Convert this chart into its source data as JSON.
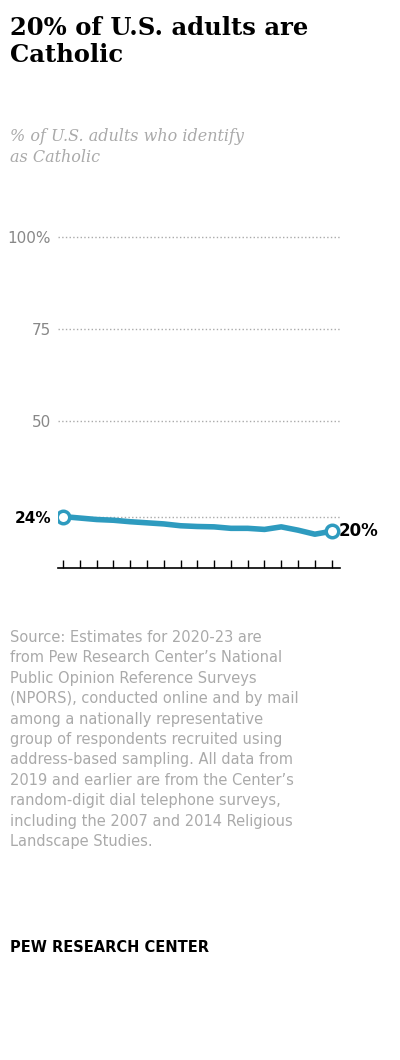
{
  "title": "20% of U.S. adults are\nCatholic",
  "subtitle": "% of U.S. adults who identify\nas Catholic",
  "years": [
    2007,
    2008,
    2009,
    2010,
    2011,
    2012,
    2013,
    2014,
    2015,
    2016,
    2017,
    2018,
    2019,
    2020,
    2021,
    2022,
    2023
  ],
  "values": [
    24,
    23.6,
    23.2,
    23.0,
    22.6,
    22.3,
    22.0,
    21.5,
    21.3,
    21.2,
    20.8,
    20.8,
    20.5,
    21.2,
    20.3,
    19.2,
    20.0
  ],
  "line_color": "#2e9bbf",
  "line_width": 4.0,
  "dot_color": "#2e9bbf",
  "first_label": "24%",
  "last_label": "20%",
  "yticks": [
    100,
    75,
    50,
    24
  ],
  "ytick_labels": [
    "100%",
    "75",
    "50",
    "24%"
  ],
  "xmin": 2007,
  "xmax": 2023,
  "ymin": 10,
  "ymax": 108,
  "dotted_line_color": "#aaaaaa",
  "background_color": "#ffffff",
  "source_text": "Source: Estimates for 2020-23 are\nfrom Pew Research Center’s National\nPublic Opinion Reference Surveys\n(NPORS), conducted online and by mail\namong a nationally representative\ngroup of respondents recruited using\naddress-based sampling. All data from\n2019 and earlier are from the Center’s\nrandom-digit dial telephone surveys,\nincluding the 2007 and 2014 Religious\nLandscape Studies.",
  "footer_text": "PEW RESEARCH CENTER",
  "title_color": "#000000",
  "subtitle_color": "#aaaaaa",
  "source_color": "#aaaaaa",
  "footer_color": "#000000",
  "border_color": "#cccccc"
}
